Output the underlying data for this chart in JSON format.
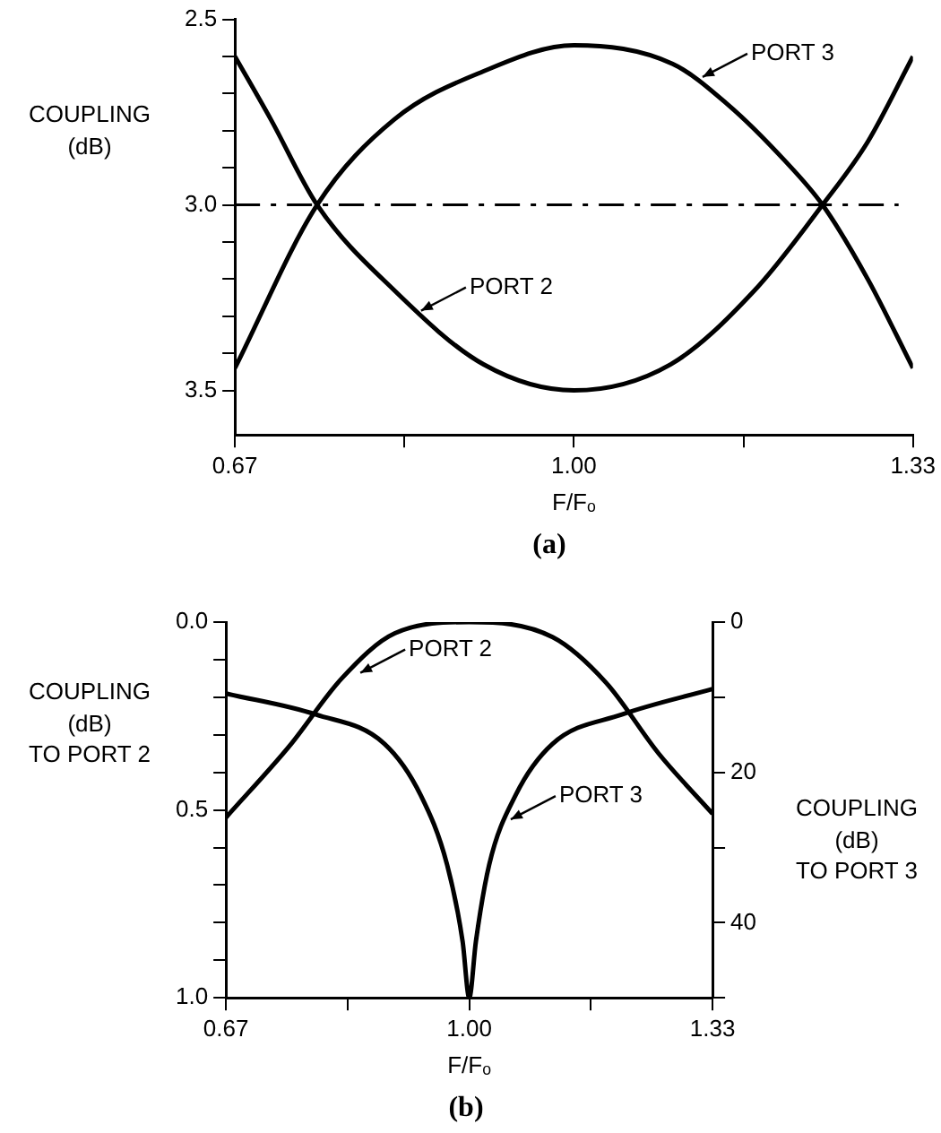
{
  "chart_data": [
    {
      "type": "line",
      "title": "(a)",
      "xlabel": "F/Fₒ",
      "ylabel": "COUPLING\n(dB)",
      "xlim": [
        0.67,
        1.33
      ],
      "xticks": [
        {
          "value": 0.67,
          "label": "0.67"
        },
        {
          "value": 0.835,
          "label": null
        },
        {
          "value": 1.0,
          "label": "1.00"
        },
        {
          "value": 1.165,
          "label": null
        },
        {
          "value": 1.33,
          "label": "1.33"
        }
      ],
      "ylim": [
        3.62,
        2.5
      ],
      "yticks": [
        {
          "value": 2.5,
          "label": "2.5"
        },
        {
          "value": 2.6,
          "label": null
        },
        {
          "value": 2.7,
          "label": null
        },
        {
          "value": 2.8,
          "label": null
        },
        {
          "value": 2.9,
          "label": null
        },
        {
          "value": 3.0,
          "label": "3.0"
        },
        {
          "value": 3.1,
          "label": null
        },
        {
          "value": 3.2,
          "label": null
        },
        {
          "value": 3.3,
          "label": null
        },
        {
          "value": 3.4,
          "label": null
        },
        3.5
      ],
      "grid": false,
      "legend": false,
      "marker": "none",
      "series": [
        {
          "color": "#000000",
          "x": [
            0.67,
            0.75,
            0.825,
            0.912,
            1.0,
            1.096,
            1.15,
            1.205,
            1.242,
            1.286,
            1.33
          ],
          "values": [
            3.44,
            3.0,
            2.77,
            2.64,
            2.57,
            2.62,
            2.73,
            2.88,
            3.0,
            3.2,
            3.44
          ]
        },
        {
          "color": "#000000",
          "x": [
            0.67,
            0.705,
            0.75,
            0.825,
            0.912,
            1.0,
            1.094,
            1.176,
            1.242,
            1.286,
            1.33
          ],
          "values": [
            2.6,
            2.77,
            3.0,
            3.23,
            3.43,
            3.5,
            3.43,
            3.23,
            3.0,
            2.83,
            2.6
          ]
        }
      ],
      "ref_lines": [
        {
          "axis": "y",
          "value": 3.0,
          "line_style": "dashed",
          "color": "#000000"
        }
      ],
      "annotations": [
        {
          "text": "PORT 3",
          "x": 1.12,
          "y": 2.66
        },
        {
          "text": "PORT 2",
          "x": 0.846,
          "y": 3.29
        }
      ]
    },
    {
      "type": "line",
      "title": "(b)",
      "xlabel": "F/Fₒ",
      "ylabel": "COUPLING\n(dB)\nTO PORT 2",
      "y2label": "COUPLING\n(dB)\nTO PORT 3",
      "xlim": [
        0.67,
        1.33
      ],
      "xticks": [
        {
          "value": 0.67,
          "label": "0.67"
        },
        {
          "value": 0.835,
          "label": null
        },
        {
          "value": 1.0,
          "label": "1.00"
        },
        {
          "value": 1.165,
          "label": null
        },
        {
          "value": 1.33,
          "label": "1.33"
        }
      ],
      "ylim": [
        1.0,
        0.0
      ],
      "yticks": [
        {
          "value": 0.0,
          "label": "0.0"
        },
        {
          "value": 0.1,
          "label": null
        },
        {
          "value": 0.2,
          "label": null
        },
        {
          "value": 0.3,
          "label": null
        },
        {
          "value": 0.4,
          "label": null
        },
        0.5,
        {
          "value": 0.6,
          "label": null
        },
        {
          "value": 0.7,
          "label": null
        },
        {
          "value": 0.8,
          "label": null
        },
        {
          "value": 0.9,
          "label": null
        },
        {
          "value": 1.0,
          "label": "1.0"
        }
      ],
      "y2lim": [
        50,
        0
      ],
      "y2ticks": [
        0,
        {
          "value": 10,
          "label": null
        },
        20,
        {
          "value": 30,
          "label": null
        },
        40,
        {
          "value": 50,
          "label": null
        }
      ],
      "grid": false,
      "legend": false,
      "marker": "none",
      "series": [
        {
          "color": "#000000",
          "x": [
            0.67,
            0.756,
            0.827,
            0.899,
            1.0,
            1.113,
            1.185,
            1.257,
            1.33
          ],
          "values": [
            0.52,
            0.33,
            0.15,
            0.03,
            0.0,
            0.04,
            0.16,
            0.35,
            0.51
          ]
        },
        {
          "color": "#000000",
          "axis": "y2",
          "x": [
            0.67,
            0.792,
            0.885,
            0.934,
            0.97,
            0.991,
            1.0,
            1.009,
            1.027,
            1.063,
            1.113,
            1.207,
            1.33
          ],
          "values": [
            9.5,
            12.3,
            16.2,
            23,
            32.3,
            42.5,
            50,
            42.5,
            32.3,
            23,
            16.2,
            12.3,
            8.9
          ]
        }
      ],
      "annotations": [
        {
          "text": "PORT 2",
          "x": 0.845,
          "y": 0.14
        },
        {
          "text": "PORT 3",
          "x": 1.049,
          "y": 0.53
        }
      ]
    }
  ]
}
